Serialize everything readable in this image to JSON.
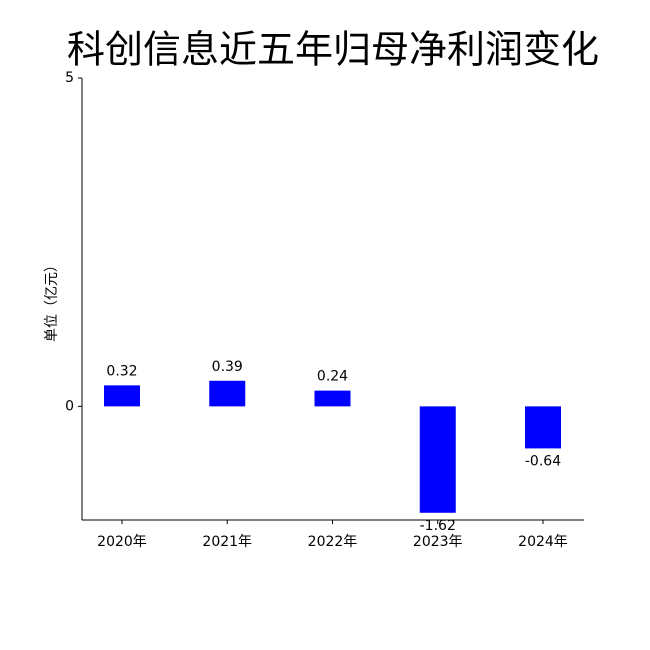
{
  "chart_data": {
    "type": "bar",
    "title": "科创信息近五年归母净利润变化",
    "y_label": "单位（亿元）",
    "categories": [
      "2020年",
      "2021年",
      "2022年",
      "2023年",
      "2024年"
    ],
    "values": [
      0.32,
      0.39,
      0.24,
      -1.62,
      -0.64
    ],
    "color": "#0000ff",
    "ylim": [
      -1.73,
      5
    ],
    "yticks": [
      0,
      5
    ],
    "grid": false
  }
}
